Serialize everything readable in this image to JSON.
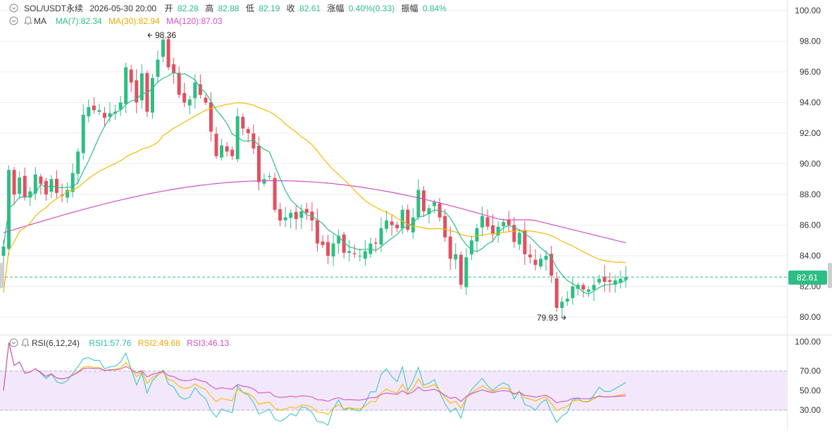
{
  "header": {
    "symbol": "SOL/USDT永续",
    "datetime": "2026-05-30 20:00",
    "open_label": "开",
    "open": "82.28",
    "high_label": "高",
    "high": "82.88",
    "low_label": "低",
    "low": "82.19",
    "close_label": "收",
    "close": "82.61",
    "change_label": "涨幅",
    "change": "0.40%(0.33)",
    "amplitude_label": "振幅",
    "amplitude": "0.84%"
  },
  "ma_legend": {
    "label": "MA",
    "ma7": "MA(7):82.34",
    "ma30": "MA(30):82.94",
    "ma120": "MA(120):87.03"
  },
  "rsi_legend": {
    "label": "RSI(6,12,24)",
    "rsi1": "RSI1:57.76",
    "rsi2": "RSI2:49.68",
    "rsi3": "RSI3:46.13"
  },
  "annotations": {
    "high": "98.36",
    "low": "79.93"
  },
  "current_price": "82.61",
  "colors": {
    "up": "#2ebd85",
    "down": "#e0505f",
    "ma7": "#2ebd85",
    "ma30": "#f5b800",
    "ma120": "#d14fc2",
    "rsi1": "#3cc8c0",
    "rsi2": "#f5b800",
    "rsi3": "#d14fc2",
    "rsi_band": "#f3e8fb",
    "grid": "#eeeeee",
    "price_line": "#2ebd85"
  },
  "chart_data": [
    {
      "type": "candlestick",
      "title": "SOL/USDT永续",
      "y_ticks": [
        "80.00",
        "82.00",
        "84.00",
        "86.00",
        "88.00",
        "90.00",
        "92.00",
        "94.00",
        "96.00",
        "98.00",
        "100.00"
      ],
      "ylim": [
        79.0,
        100.0
      ],
      "close": [
        84.6,
        89.6,
        88.0,
        89.1,
        87.8,
        88.2,
        89.3,
        88.7,
        88.0,
        89.0,
        88.1,
        87.9,
        88.3,
        89.4,
        90.8,
        93.2,
        93.7,
        93.5,
        93.5,
        93.0,
        93.3,
        93.4,
        94.0,
        96.3,
        95.3,
        94.0,
        95.9,
        93.4,
        95.6,
        96.8,
        98.1,
        96.3,
        95.9,
        94.5,
        94.0,
        94.2,
        95.3,
        94.5,
        94.0,
        92.1,
        90.5,
        91.2,
        90.8,
        90.5,
        93.1,
        92.3,
        92.0,
        91.0,
        88.8,
        89.0,
        89.2,
        87.0,
        86.3,
        86.5,
        86.8,
        86.4,
        86.9,
        86.8,
        86.3,
        84.8,
        84.7,
        84.0,
        84.8,
        85.3,
        84.2,
        84.3,
        84.1,
        84.0,
        84.3,
        84.8,
        84.8,
        85.8,
        86.3,
        86.0,
        85.8,
        87.0,
        85.7,
        86.5,
        88.3,
        86.9,
        87.1,
        87.5,
        86.5,
        85.2,
        83.8,
        84.1,
        82.1,
        83.9,
        85.0,
        85.8,
        86.6,
        85.9,
        85.4,
        85.9,
        86.2,
        86.0,
        84.9,
        85.5,
        84.1,
        83.9,
        83.4,
        83.8,
        84.0,
        82.7,
        80.6,
        81.0,
        81.2,
        82.0,
        82.1,
        81.8,
        81.8,
        82.1,
        82.5,
        82.3,
        82.3,
        82.4,
        82.5,
        82.61
      ],
      "high_label_value": 98.36,
      "low_label_value": 79.93,
      "last": 82.61
    },
    {
      "type": "line",
      "title": "RSI(6,12,24)",
      "y_ticks": [
        "30.00",
        "50.00",
        "70.00",
        "100.00"
      ],
      "band": [
        30,
        70
      ],
      "ylim": [
        10,
        100
      ],
      "series": [
        {
          "name": "RSI1",
          "last": 57.76
        },
        {
          "name": "RSI2",
          "last": 49.68
        },
        {
          "name": "RSI3",
          "last": 46.13
        }
      ]
    }
  ]
}
